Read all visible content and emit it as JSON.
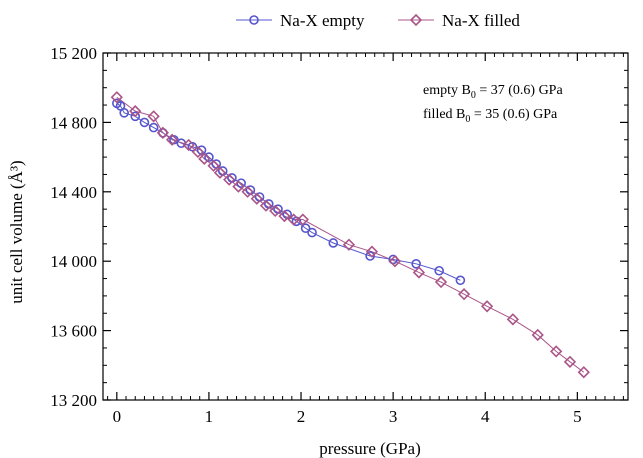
{
  "chart_data": {
    "type": "line",
    "title": "",
    "xlabel": "pressure (GPa)",
    "ylabel": "unit cell volume (Å³)",
    "xlim": [
      -0.15,
      5.55
    ],
    "ylim": [
      13200,
      15200
    ],
    "x_ticks": [
      {
        "value": 0,
        "label": "0"
      },
      {
        "value": 1,
        "label": "1"
      },
      {
        "value": 2,
        "label": "2"
      },
      {
        "value": 3,
        "label": "3"
      },
      {
        "value": 4,
        "label": "4"
      },
      {
        "value": 5,
        "label": "5"
      }
    ],
    "y_ticks": [
      {
        "value": 13200,
        "label": "13 200"
      },
      {
        "value": 13600,
        "label": "13 600"
      },
      {
        "value": 14000,
        "label": "14 000"
      },
      {
        "value": 14400,
        "label": "14 400"
      },
      {
        "value": 14800,
        "label": "14 800"
      },
      {
        "value": 15200,
        "label": "15 200"
      }
    ],
    "grid": false,
    "legend_position": "top-center",
    "series": [
      {
        "name": "Na-X empty",
        "color": "#5555cc",
        "marker": "circle",
        "points": [
          [
            0.0,
            14910
          ],
          [
            0.04,
            14895
          ],
          [
            0.08,
            14855
          ],
          [
            0.2,
            14835
          ],
          [
            0.3,
            14800
          ],
          [
            0.4,
            14770
          ],
          [
            0.5,
            14740
          ],
          [
            0.62,
            14700
          ],
          [
            0.7,
            14680
          ],
          [
            0.82,
            14660
          ],
          [
            0.92,
            14640
          ],
          [
            1.0,
            14600
          ],
          [
            1.08,
            14560
          ],
          [
            1.15,
            14520
          ],
          [
            1.25,
            14480
          ],
          [
            1.35,
            14450
          ],
          [
            1.45,
            14410
          ],
          [
            1.55,
            14370
          ],
          [
            1.65,
            14330
          ],
          [
            1.75,
            14300
          ],
          [
            1.85,
            14270
          ],
          [
            1.95,
            14230
          ],
          [
            2.05,
            14190
          ],
          [
            2.12,
            14165
          ],
          [
            2.35,
            14105
          ],
          [
            2.75,
            14030
          ],
          [
            3.0,
            14010
          ],
          [
            3.25,
            13985
          ],
          [
            3.5,
            13945
          ],
          [
            3.73,
            13890
          ]
        ]
      },
      {
        "name": "Na-X filled",
        "color": "#aa5588",
        "marker": "diamond",
        "points": [
          [
            0.0,
            14945
          ],
          [
            0.2,
            14865
          ],
          [
            0.4,
            14835
          ],
          [
            0.5,
            14740
          ],
          [
            0.6,
            14700
          ],
          [
            0.78,
            14670
          ],
          [
            0.88,
            14630
          ],
          [
            0.95,
            14590
          ],
          [
            1.05,
            14550
          ],
          [
            1.12,
            14510
          ],
          [
            1.22,
            14470
          ],
          [
            1.32,
            14430
          ],
          [
            1.42,
            14400
          ],
          [
            1.52,
            14360
          ],
          [
            1.62,
            14320
          ],
          [
            1.72,
            14290
          ],
          [
            1.82,
            14260
          ],
          [
            1.92,
            14240
          ],
          [
            2.02,
            14240
          ],
          [
            2.52,
            14095
          ],
          [
            2.77,
            14055
          ],
          [
            3.02,
            14000
          ],
          [
            3.28,
            13935
          ],
          [
            3.52,
            13880
          ],
          [
            3.77,
            13810
          ],
          [
            4.02,
            13740
          ],
          [
            4.3,
            13665
          ],
          [
            4.57,
            13575
          ],
          [
            4.77,
            13480
          ],
          [
            4.92,
            13420
          ],
          [
            5.07,
            13360
          ]
        ]
      }
    ],
    "annotations": [
      {
        "prefix": "empty B",
        "subscript": "0",
        "suffix": " = 37 (0.6) GPa"
      },
      {
        "prefix": "filled B",
        "subscript": "0",
        "suffix": " = 35 (0.6) GPa"
      }
    ]
  }
}
